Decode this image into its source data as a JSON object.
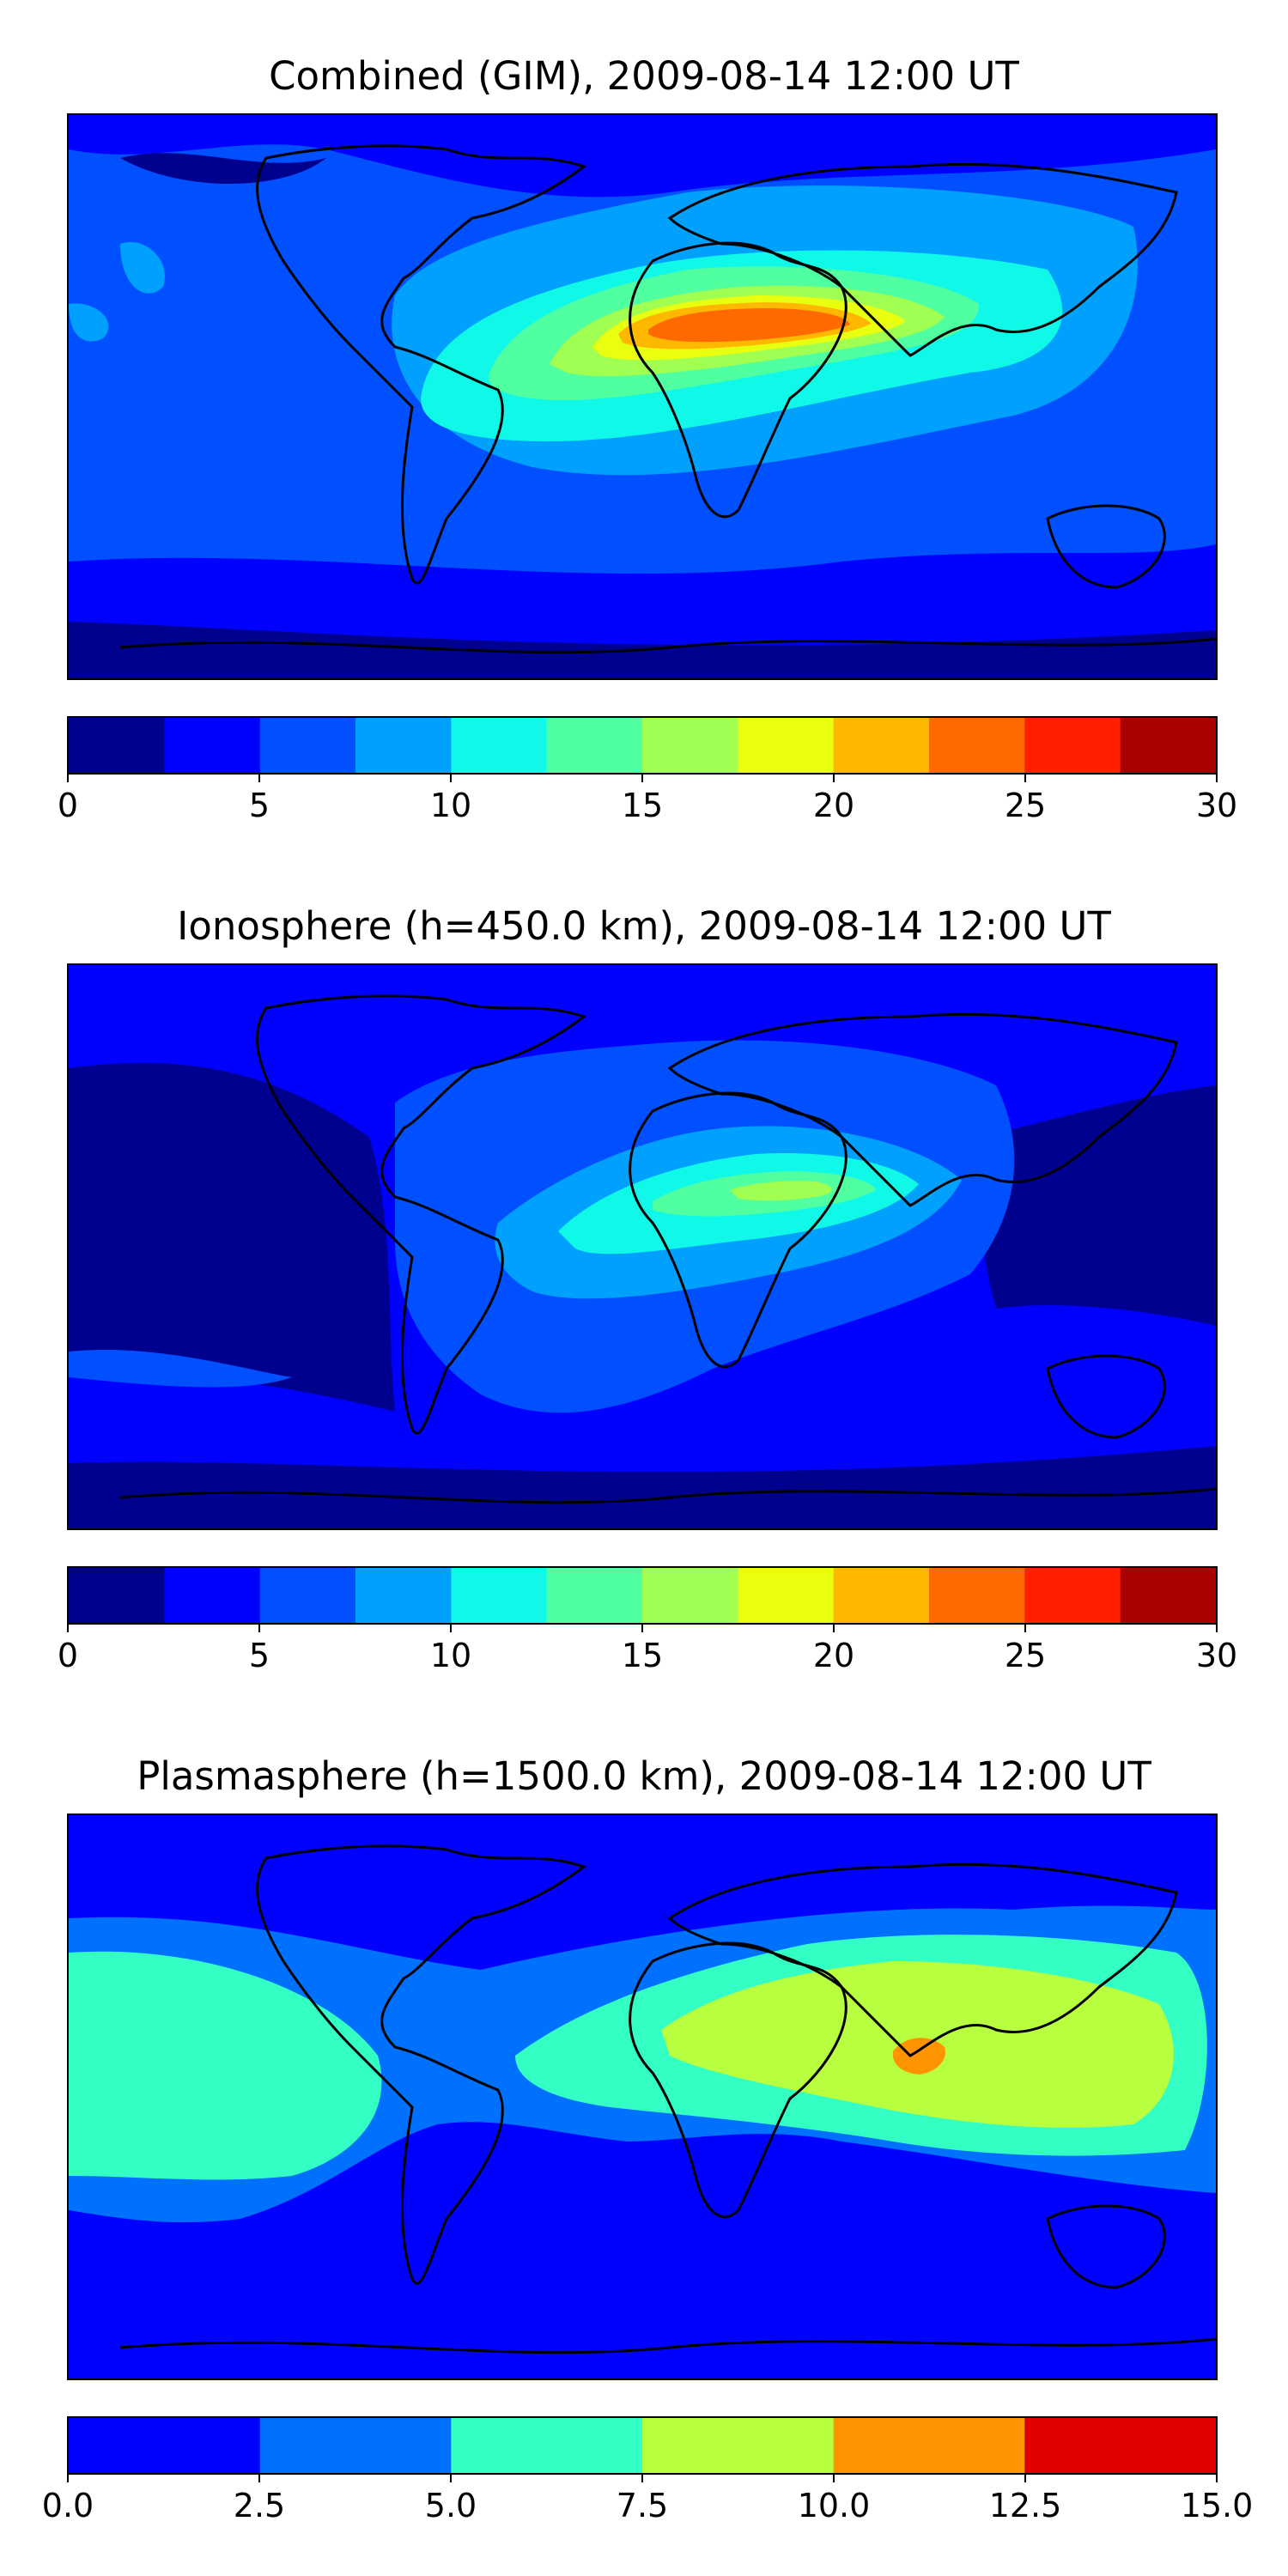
{
  "panels": [
    {
      "title": "Combined (GIM), 2009-08-14 12:00 UT",
      "colorbar": {
        "ticks": [
          "0",
          "5",
          "10",
          "15",
          "20",
          "25",
          "30"
        ],
        "tick_values": [
          0,
          5,
          10,
          15,
          20,
          25,
          30
        ],
        "range": [
          0,
          30
        ],
        "levels": [
          0,
          2.5,
          5,
          7.5,
          10,
          12.5,
          15,
          17.5,
          20,
          22.5,
          25,
          27.5,
          30
        ],
        "colors": [
          "#00008f",
          "#0000ff",
          "#0050ff",
          "#00a0ff",
          "#10f8e8",
          "#50ffa0",
          "#a0ff50",
          "#e8ff10",
          "#ffb800",
          "#ff6a00",
          "#ff2000",
          "#a80000"
        ]
      }
    },
    {
      "title": "Ionosphere  (h=450.0 km), 2009-08-14 12:00 UT",
      "colorbar": {
        "ticks": [
          "0",
          "5",
          "10",
          "15",
          "20",
          "25",
          "30"
        ],
        "tick_values": [
          0,
          5,
          10,
          15,
          20,
          25,
          30
        ],
        "range": [
          0,
          30
        ],
        "levels": [
          0,
          2.5,
          5,
          7.5,
          10,
          12.5,
          15,
          17.5,
          20,
          22.5,
          25,
          27.5,
          30
        ],
        "colors": [
          "#00008f",
          "#0000ff",
          "#0050ff",
          "#00a0ff",
          "#10f8e8",
          "#50ffa0",
          "#a0ff50",
          "#e8ff10",
          "#ffb800",
          "#ff6a00",
          "#ff2000",
          "#a80000"
        ]
      }
    },
    {
      "title": "Plasmasphere (h=1500.0 km), 2009-08-14 12:00 UT",
      "colorbar": {
        "ticks": [
          "0.0",
          "2.5",
          "5.0",
          "7.5",
          "10.0",
          "12.5",
          "15.0"
        ],
        "tick_values": [
          0,
          2.5,
          5,
          7.5,
          10,
          12.5,
          15
        ],
        "range": [
          0,
          15
        ],
        "levels": [
          0,
          2.5,
          5,
          7.5,
          10,
          12.5,
          15
        ],
        "colors": [
          "#0000ff",
          "#0070ff",
          "#33ffc4",
          "#b8ff40",
          "#ff9400",
          "#e00000"
        ]
      }
    }
  ],
  "chart_data": [
    {
      "type": "heatmap",
      "title": "Combined (GIM), 2009-08-14 12:00 UT",
      "projection": "global map (lon -180 to 180, lat -90 to 90) with coastlines",
      "colorbar_range": [
        0,
        30
      ],
      "contour_levels": [
        0,
        2.5,
        5,
        7.5,
        10,
        12.5,
        15,
        17.5,
        20,
        22.5,
        25,
        27.5,
        30
      ],
      "peak_region": "Arabia / Horn of Africa",
      "approx_peak_value": 25,
      "grid": false
    },
    {
      "type": "heatmap",
      "title": "Ionosphere  (h=450.0 km), 2009-08-14 12:00 UT",
      "projection": "global map (lon -180 to 180, lat -90 to 90) with coastlines",
      "colorbar_range": [
        0,
        30
      ],
      "contour_levels": [
        0,
        2.5,
        5,
        7.5,
        10,
        12.5,
        15,
        17.5,
        20,
        22.5,
        25,
        27.5,
        30
      ],
      "peak_region": "Arabia / Horn of Africa",
      "approx_peak_value": 15,
      "grid": false
    },
    {
      "type": "heatmap",
      "title": "Plasmasphere (h=1500.0 km), 2009-08-14 12:00 UT",
      "projection": "global map (lon -180 to 180, lat -90 to 90) with coastlines",
      "colorbar_range": [
        0,
        15
      ],
      "contour_levels": [
        0,
        2.5,
        5,
        7.5,
        10,
        12.5,
        15
      ],
      "peak_region": "India / Bay of Bengal",
      "approx_peak_value": 10,
      "grid": false
    }
  ]
}
